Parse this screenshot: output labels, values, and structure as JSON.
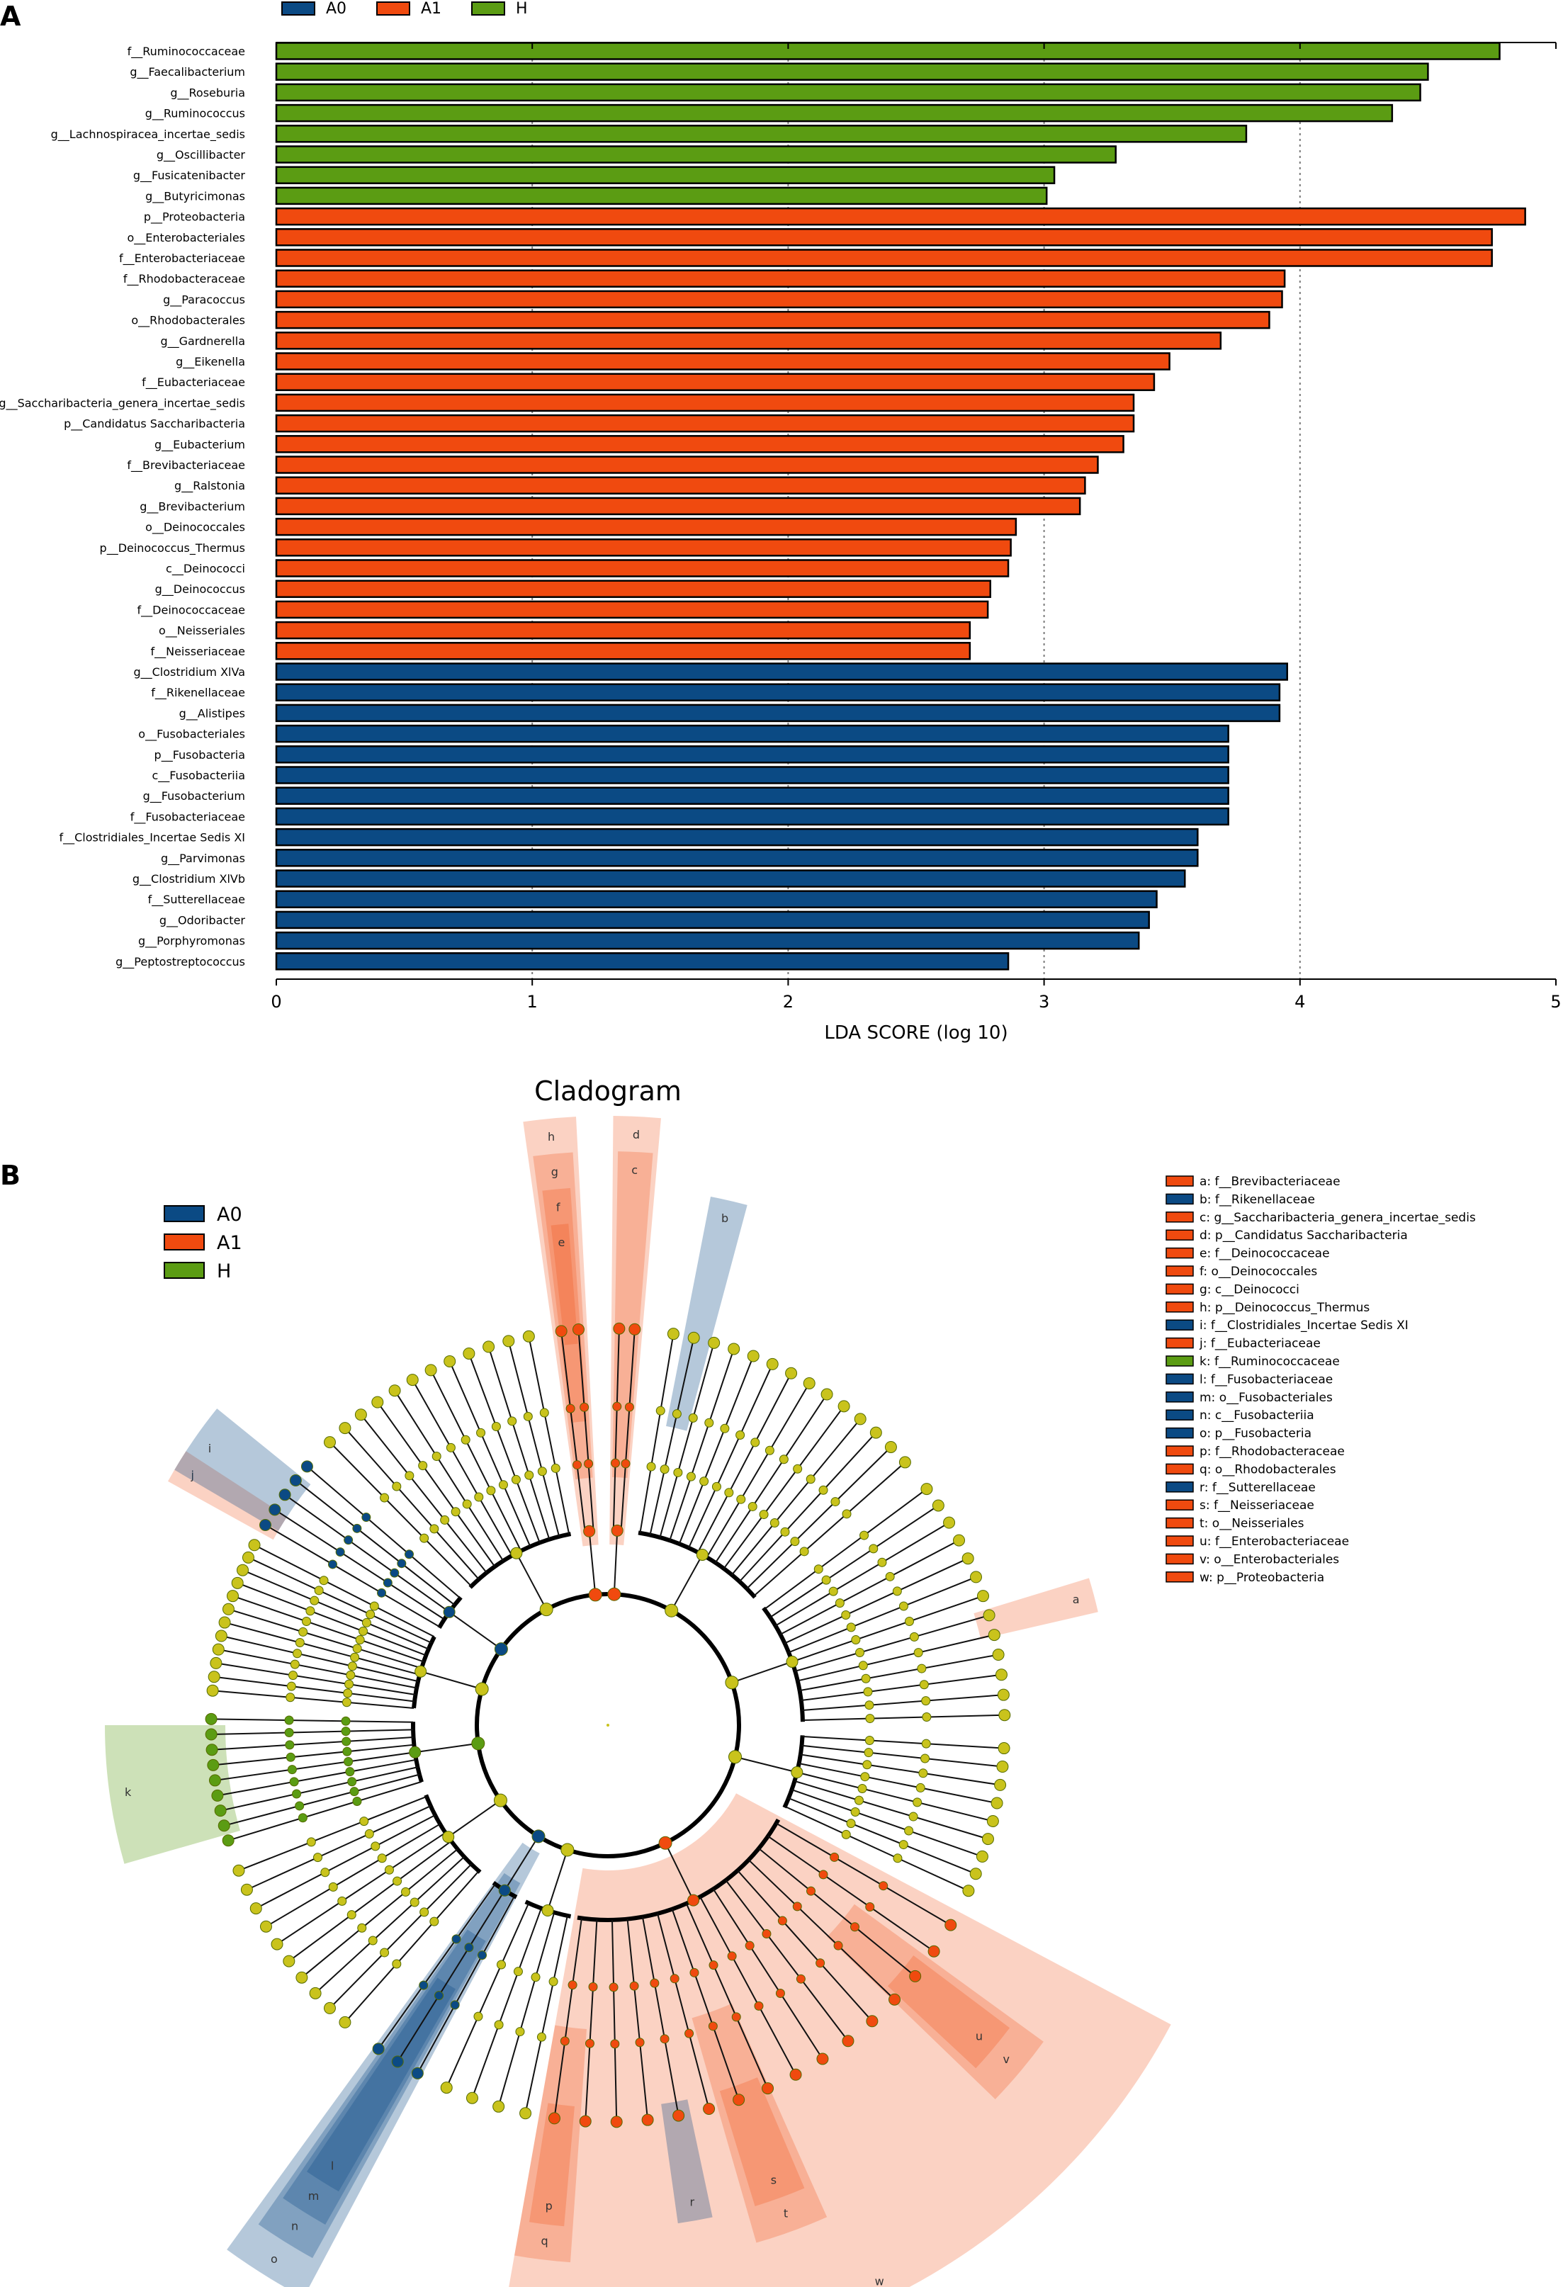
{
  "colors": {
    "A0": "#0b4a84",
    "A1": "#f04a0f",
    "H": "#5b9c13",
    "node": "#c9c31c"
  },
  "panel_a_letter": "A",
  "panel_b_letter": "B",
  "chart_data": {
    "type": "bar",
    "orientation": "horizontal",
    "xlabel": "LDA SCORE (log 10)",
    "xlim": [
      0,
      5
    ],
    "xticks": [
      "0",
      "1",
      "2",
      "3",
      "4",
      "5"
    ],
    "legend": [
      {
        "name": "A0",
        "color": "#0b4a84"
      },
      {
        "name": "A1",
        "color": "#f04a0f"
      },
      {
        "name": "H",
        "color": "#5b9c13"
      }
    ],
    "bars": [
      {
        "label": "f__Ruminococcaceae",
        "value": 4.78,
        "group": "H"
      },
      {
        "label": "g__Faecalibacterium",
        "value": 4.5,
        "group": "H"
      },
      {
        "label": "g__Roseburia",
        "value": 4.47,
        "group": "H"
      },
      {
        "label": "g__Ruminococcus",
        "value": 4.36,
        "group": "H"
      },
      {
        "label": "g__Lachnospiracea_incertae_sedis",
        "value": 3.79,
        "group": "H"
      },
      {
        "label": "g__Oscillibacter",
        "value": 3.28,
        "group": "H"
      },
      {
        "label": "g__Fusicatenibacter",
        "value": 3.04,
        "group": "H"
      },
      {
        "label": "g__Butyricimonas",
        "value": 3.01,
        "group": "H"
      },
      {
        "label": "p__Proteobacteria",
        "value": 4.88,
        "group": "A1"
      },
      {
        "label": "o__Enterobacteriales",
        "value": 4.75,
        "group": "A1"
      },
      {
        "label": "f__Enterobacteriaceae",
        "value": 4.75,
        "group": "A1"
      },
      {
        "label": "f__Rhodobacteraceae",
        "value": 3.94,
        "group": "A1"
      },
      {
        "label": "g__Paracoccus",
        "value": 3.93,
        "group": "A1"
      },
      {
        "label": "o__Rhodobacterales",
        "value": 3.88,
        "group": "A1"
      },
      {
        "label": "g__Gardnerella",
        "value": 3.69,
        "group": "A1"
      },
      {
        "label": "g__Eikenella",
        "value": 3.49,
        "group": "A1"
      },
      {
        "label": "f__Eubacteriaceae",
        "value": 3.43,
        "group": "A1"
      },
      {
        "label": "g__Saccharibacteria_genera_incertae_sedis",
        "value": 3.35,
        "group": "A1"
      },
      {
        "label": "p__Candidatus Saccharibacteria",
        "value": 3.35,
        "group": "A1"
      },
      {
        "label": "g__Eubacterium",
        "value": 3.31,
        "group": "A1"
      },
      {
        "label": "f__Brevibacteriaceae",
        "value": 3.21,
        "group": "A1"
      },
      {
        "label": "g__Ralstonia",
        "value": 3.16,
        "group": "A1"
      },
      {
        "label": "g__Brevibacterium",
        "value": 3.14,
        "group": "A1"
      },
      {
        "label": "o__Deinococcales",
        "value": 2.89,
        "group": "A1"
      },
      {
        "label": "p__Deinococcus_Thermus",
        "value": 2.87,
        "group": "A1"
      },
      {
        "label": "c__Deinococci",
        "value": 2.86,
        "group": "A1"
      },
      {
        "label": "g__Deinococcus",
        "value": 2.79,
        "group": "A1"
      },
      {
        "label": "f__Deinococcaceae",
        "value": 2.78,
        "group": "A1"
      },
      {
        "label": "o__Neisseriales",
        "value": 2.71,
        "group": "A1"
      },
      {
        "label": "f__Neisseriaceae",
        "value": 2.71,
        "group": "A1"
      },
      {
        "label": "g__Clostridium XlVa",
        "value": 3.95,
        "group": "A0"
      },
      {
        "label": "f__Rikenellaceae",
        "value": 3.92,
        "group": "A0"
      },
      {
        "label": "g__Alistipes",
        "value": 3.92,
        "group": "A0"
      },
      {
        "label": "o__Fusobacteriales",
        "value": 3.72,
        "group": "A0"
      },
      {
        "label": "p__Fusobacteria",
        "value": 3.72,
        "group": "A0"
      },
      {
        "label": "c__Fusobacteriia",
        "value": 3.72,
        "group": "A0"
      },
      {
        "label": "g__Fusobacterium",
        "value": 3.72,
        "group": "A0"
      },
      {
        "label": "f__Fusobacteriaceae",
        "value": 3.72,
        "group": "A0"
      },
      {
        "label": "f__Clostridiales_Incertae Sedis XI",
        "value": 3.6,
        "group": "A0"
      },
      {
        "label": "g__Parvimonas",
        "value": 3.6,
        "group": "A0"
      },
      {
        "label": "g__Clostridium XlVb",
        "value": 3.55,
        "group": "A0"
      },
      {
        "label": "f__Sutterellaceae",
        "value": 3.44,
        "group": "A0"
      },
      {
        "label": "g__Odoribacter",
        "value": 3.41,
        "group": "A0"
      },
      {
        "label": "g__Porphyromonas",
        "value": 3.37,
        "group": "A0"
      },
      {
        "label": "g__Peptostreptococcus",
        "value": 2.86,
        "group": "A0"
      }
    ]
  },
  "cladogram": {
    "title": "Cladogram",
    "legend": [
      {
        "name": "A0",
        "color": "#0b4a84"
      },
      {
        "name": "A1",
        "color": "#f04a0f"
      },
      {
        "name": "H",
        "color": "#5b9c13"
      }
    ],
    "key": [
      {
        "text": "a: f__Brevibacteriaceae",
        "group": "A1"
      },
      {
        "text": "b: f__Rikenellaceae",
        "group": "A0"
      },
      {
        "text": "c: g__Saccharibacteria_genera_incertae_sedis",
        "group": "A1"
      },
      {
        "text": "d: p__Candidatus Saccharibacteria",
        "group": "A1"
      },
      {
        "text": "e: f__Deinococcaceae",
        "group": "A1"
      },
      {
        "text": "f: o__Deinococcales",
        "group": "A1"
      },
      {
        "text": "g: c__Deinococci",
        "group": "A1"
      },
      {
        "text": "h: p__Deinococcus_Thermus",
        "group": "A1"
      },
      {
        "text": "i: f__Clostridiales_Incertae Sedis XI",
        "group": "A0"
      },
      {
        "text": "j: f__Eubacteriaceae",
        "group": "A1"
      },
      {
        "text": "k: f__Ruminococcaceae",
        "group": "H"
      },
      {
        "text": "l: f__Fusobacteriaceae",
        "group": "A0"
      },
      {
        "text": "m: o__Fusobacteriales",
        "group": "A0"
      },
      {
        "text": "n: c__Fusobacteriia",
        "group": "A0"
      },
      {
        "text": "o: p__Fusobacteria",
        "group": "A0"
      },
      {
        "text": "p: f__Rhodobacteraceae",
        "group": "A1"
      },
      {
        "text": "q: o__Rhodobacterales",
        "group": "A1"
      },
      {
        "text": "r: f__Sutterellaceae",
        "group": "A0"
      },
      {
        "text": "s: f__Neisseriaceae",
        "group": "A1"
      },
      {
        "text": "t: o__Neisseriales",
        "group": "A1"
      },
      {
        "text": "u: f__Enterobacteriaceae",
        "group": "A1"
      },
      {
        "text": "v: o__Enterobacteriales",
        "group": "A1"
      },
      {
        "text": "w: p__Proteobacteria",
        "group": "A1"
      }
    ],
    "sectors": [
      {
        "letter": "w",
        "group": "A1",
        "start": 118,
        "end": 190,
        "level": 1
      },
      {
        "letter": "o",
        "group": "A0",
        "start": 208,
        "end": 216,
        "level": 1
      },
      {
        "letter": "n",
        "group": "A0",
        "start": 209,
        "end": 215,
        "level": 2
      },
      {
        "letter": "m",
        "group": "A0",
        "start": 209.5,
        "end": 214.5,
        "level": 3
      },
      {
        "letter": "l",
        "group": "A0",
        "start": 210,
        "end": 214,
        "level": 4
      },
      {
        "letter": "k",
        "group": "H",
        "start": 254,
        "end": 270,
        "level": 5
      },
      {
        "letter": "j",
        "group": "A1",
        "start": 299,
        "end": 303,
        "level": 5
      },
      {
        "letter": "i",
        "group": "A0",
        "start": 300.5,
        "end": 309,
        "level": 5
      },
      {
        "letter": "h",
        "group": "A1",
        "start": 352,
        "end": 357,
        "level": 2
      },
      {
        "letter": "g",
        "group": "A1",
        "start": 352.5,
        "end": 356.5,
        "level": 3
      },
      {
        "letter": "f",
        "group": "A1",
        "start": 353,
        "end": 356,
        "level": 4
      },
      {
        "letter": "e",
        "group": "A1",
        "start": 353.5,
        "end": 355.5,
        "level": 5
      },
      {
        "letter": "d",
        "group": "A1",
        "start": 0.5,
        "end": 5,
        "level": 2
      },
      {
        "letter": "c",
        "group": "A1",
        "start": 1,
        "end": 4.5,
        "level": 3
      },
      {
        "letter": "b",
        "group": "A0",
        "start": 11,
        "end": 15,
        "level": 4
      },
      {
        "letter": "a",
        "group": "A1",
        "start": 73,
        "end": 77,
        "level": 5
      },
      {
        "letter": "v",
        "group": "A1",
        "start": 126,
        "end": 134,
        "level": 4
      },
      {
        "letter": "u",
        "group": "A1",
        "start": 127,
        "end": 133,
        "level": 5
      },
      {
        "letter": "t",
        "group": "A1",
        "start": 156,
        "end": 164,
        "level": 4
      },
      {
        "letter": "s",
        "group": "A1",
        "start": 157,
        "end": 163,
        "level": 5
      },
      {
        "letter": "r",
        "group": "A0",
        "start": 168,
        "end": 172,
        "level": 5
      },
      {
        "letter": "q",
        "group": "A1",
        "start": 184,
        "end": 190,
        "level": 4
      },
      {
        "letter": "p",
        "group": "A1",
        "start": 185,
        "end": 189,
        "level": 5
      }
    ]
  }
}
